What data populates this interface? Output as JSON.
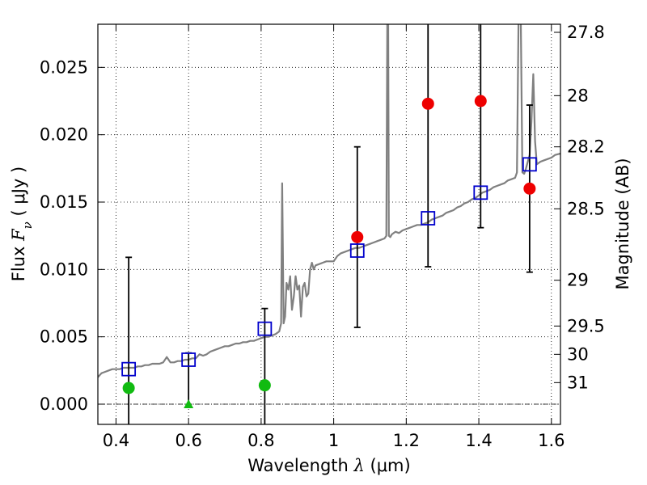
{
  "chart_data": {
    "type": "scatter",
    "xlabel": {
      "prefix": "Wavelength  ",
      "symbol": "λ",
      "unit": " (μm)"
    },
    "ylabel": {
      "prefix": "Flux  ",
      "symbol": "F",
      "subscript": "ν",
      "unit": "  ( μJy )"
    },
    "y2label": "Magnitude (AB)",
    "xlim": [
      0.35,
      1.625
    ],
    "ylim": [
      -0.0015,
      0.0282
    ],
    "grid": true,
    "x_ticks": [
      {
        "value": 0.4,
        "label": "0.4"
      },
      {
        "value": 0.6,
        "label": "0.6"
      },
      {
        "value": 0.8,
        "label": "0.8"
      },
      {
        "value": 1.0,
        "label": "1"
      },
      {
        "value": 1.2,
        "label": "1.2"
      },
      {
        "value": 1.4,
        "label": "1.4"
      },
      {
        "value": 1.6,
        "label": "1.6"
      }
    ],
    "y_ticks": [
      {
        "value": 0.0,
        "label": "0.000"
      },
      {
        "value": 0.005,
        "label": "0.005"
      },
      {
        "value": 0.01,
        "label": "0.010"
      },
      {
        "value": 0.015,
        "label": "0.015"
      },
      {
        "value": 0.02,
        "label": "0.020"
      },
      {
        "value": 0.025,
        "label": "0.025"
      }
    ],
    "y2_ticks": [
      {
        "flux": 0.0276,
        "label": "27.8"
      },
      {
        "flux": 0.0229,
        "label": "28"
      },
      {
        "flux": 0.0191,
        "label": "28.2"
      },
      {
        "flux": 0.0145,
        "label": "28.5"
      },
      {
        "flux": 0.0092,
        "label": "29"
      },
      {
        "flux": 0.0058,
        "label": "29.5"
      },
      {
        "flux": 0.0037,
        "label": "30"
      },
      {
        "flux": 0.0016,
        "label": "31"
      }
    ],
    "spectrum": {
      "color": "#808080",
      "x": [
        0.35,
        0.36,
        0.37,
        0.38,
        0.39,
        0.4,
        0.41,
        0.42,
        0.43,
        0.44,
        0.45,
        0.46,
        0.47,
        0.48,
        0.49,
        0.5,
        0.51,
        0.52,
        0.53,
        0.54,
        0.55,
        0.56,
        0.57,
        0.58,
        0.59,
        0.6,
        0.61,
        0.62,
        0.63,
        0.64,
        0.65,
        0.66,
        0.67,
        0.68,
        0.69,
        0.7,
        0.71,
        0.72,
        0.73,
        0.74,
        0.75,
        0.76,
        0.77,
        0.78,
        0.79,
        0.8,
        0.81,
        0.82,
        0.83,
        0.84,
        0.85,
        0.855,
        0.858,
        0.862,
        0.866,
        0.87,
        0.875,
        0.88,
        0.885,
        0.89,
        0.895,
        0.9,
        0.905,
        0.91,
        0.915,
        0.92,
        0.925,
        0.93,
        0.935,
        0.94,
        0.945,
        0.95,
        0.96,
        0.97,
        0.98,
        0.99,
        1.0,
        1.01,
        1.02,
        1.03,
        1.04,
        1.05,
        1.06,
        1.07,
        1.08,
        1.09,
        1.1,
        1.11,
        1.12,
        1.13,
        1.14,
        1.145,
        1.148,
        1.15,
        1.152,
        1.156,
        1.16,
        1.17,
        1.18,
        1.19,
        1.2,
        1.21,
        1.22,
        1.23,
        1.24,
        1.25,
        1.26,
        1.27,
        1.28,
        1.29,
        1.3,
        1.31,
        1.32,
        1.33,
        1.34,
        1.35,
        1.36,
        1.37,
        1.38,
        1.39,
        1.4,
        1.41,
        1.42,
        1.43,
        1.44,
        1.45,
        1.46,
        1.47,
        1.48,
        1.49,
        1.5,
        1.505,
        1.51,
        1.515,
        1.52,
        1.525,
        1.53,
        1.535,
        1.54,
        1.545,
        1.55,
        1.555,
        1.56,
        1.57,
        1.58,
        1.59,
        1.6,
        1.61,
        1.625
      ],
      "y": [
        0.002,
        0.0023,
        0.0024,
        0.0025,
        0.0026,
        0.0026,
        0.0026,
        0.0027,
        0.0027,
        0.0027,
        0.0027,
        0.0028,
        0.0028,
        0.0029,
        0.0029,
        0.003,
        0.003,
        0.003,
        0.0031,
        0.0035,
        0.0031,
        0.0031,
        0.0032,
        0.0032,
        0.0033,
        0.0033,
        0.0034,
        0.0034,
        0.0037,
        0.0036,
        0.0037,
        0.0039,
        0.004,
        0.0041,
        0.0042,
        0.0043,
        0.0043,
        0.0044,
        0.0045,
        0.0045,
        0.0046,
        0.0046,
        0.0047,
        0.0047,
        0.0048,
        0.0049,
        0.005,
        0.005,
        0.0051,
        0.0052,
        0.0054,
        0.006,
        0.0164,
        0.006,
        0.0065,
        0.009,
        0.0085,
        0.0095,
        0.007,
        0.008,
        0.0095,
        0.0085,
        0.0088,
        0.0065,
        0.0087,
        0.009,
        0.008,
        0.0082,
        0.01,
        0.0105,
        0.01,
        0.0103,
        0.0104,
        0.0105,
        0.0106,
        0.0106,
        0.0106,
        0.011,
        0.0112,
        0.0113,
        0.0114,
        0.0115,
        0.0116,
        0.0116,
        0.0117,
        0.0118,
        0.0119,
        0.012,
        0.0121,
        0.0122,
        0.0123,
        0.0125,
        0.03,
        0.03,
        0.0125,
        0.0124,
        0.0126,
        0.0128,
        0.0127,
        0.0129,
        0.013,
        0.0131,
        0.0132,
        0.0133,
        0.0133,
        0.0134,
        0.0135,
        0.0137,
        0.0138,
        0.0139,
        0.014,
        0.0142,
        0.0143,
        0.0144,
        0.0146,
        0.0147,
        0.0149,
        0.015,
        0.0152,
        0.0153,
        0.0155,
        0.0157,
        0.0158,
        0.0159,
        0.0161,
        0.0162,
        0.0163,
        0.0164,
        0.0166,
        0.0167,
        0.0168,
        0.0172,
        0.03,
        0.03,
        0.0172,
        0.0171,
        0.0175,
        0.018,
        0.0185,
        0.021,
        0.0245,
        0.0195,
        0.0178,
        0.018,
        0.0181,
        0.0182,
        0.0183,
        0.0185,
        0.0186
      ]
    },
    "series": [
      {
        "marker": "open-square",
        "color": "#0000cc",
        "x": [
          0.435,
          0.6,
          0.81,
          1.065,
          1.26,
          1.405,
          1.54
        ],
        "y": [
          0.0026,
          0.0033,
          0.0056,
          0.0114,
          0.0138,
          0.0157,
          0.0178
        ]
      },
      {
        "marker": "circle",
        "color": "#ee0000",
        "x": [
          1.065,
          1.26,
          1.405,
          1.54
        ],
        "y": [
          0.0124,
          0.0223,
          0.0225,
          0.016
        ]
      },
      {
        "marker": "circle",
        "color": "#11bb11",
        "x": [
          0.435,
          0.81
        ],
        "y": [
          0.0012,
          0.0014
        ]
      },
      {
        "marker": "triangle",
        "color": "#11bb11",
        "x": [
          0.6
        ],
        "y": [
          0.0
        ]
      }
    ],
    "errorbars": [
      {
        "x": 0.435,
        "low": -0.0016,
        "high": 0.0109
      },
      {
        "x": 0.6,
        "low": -0.0002,
        "high": 0.0038
      },
      {
        "x": 0.81,
        "low": -0.0016,
        "high": 0.0071
      },
      {
        "x": 1.065,
        "low": 0.0057,
        "high": 0.0191
      },
      {
        "x": 1.26,
        "low": 0.0102,
        "high": 0.029
      },
      {
        "x": 1.405,
        "low": 0.0131,
        "high": 0.029
      },
      {
        "x": 1.54,
        "low": 0.0098,
        "high": 0.0222
      }
    ]
  }
}
